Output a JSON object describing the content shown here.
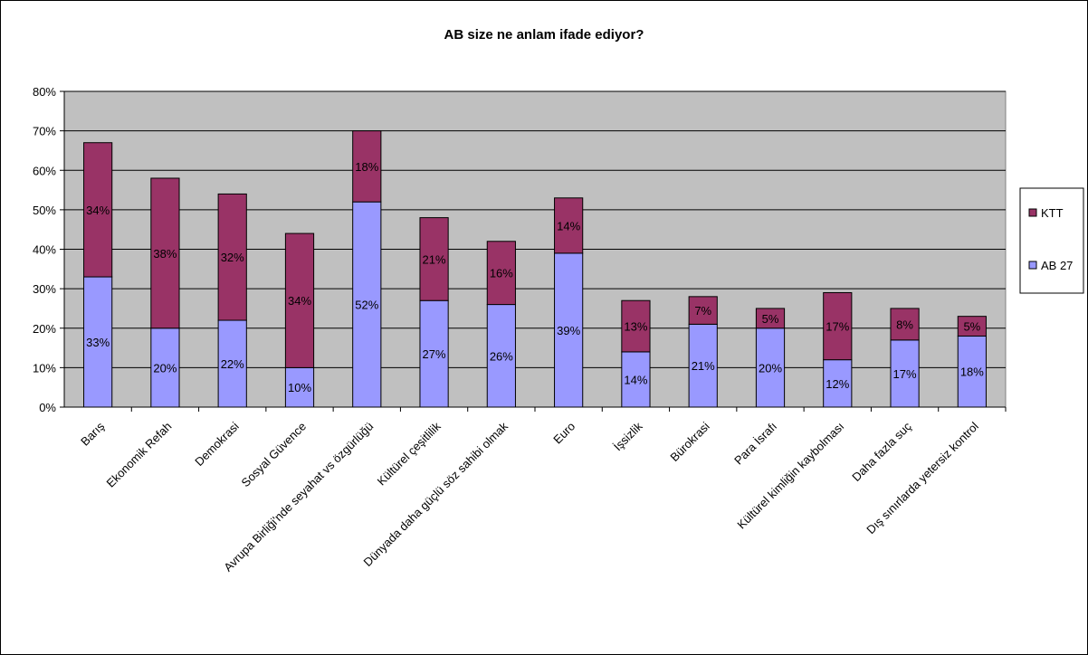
{
  "chart_data": {
    "type": "bar",
    "stacked": true,
    "title": "AB size ne anlam ifade ediyor?",
    "xlabel": "",
    "ylabel": "",
    "ylim": [
      0,
      80
    ],
    "yticks": [
      "0%",
      "10%",
      "20%",
      "30%",
      "40%",
      "50%",
      "60%",
      "70%",
      "80%"
    ],
    "grid": true,
    "legend_position": "right",
    "categories": [
      "Barış",
      "Ekonomik Refah",
      "Demokrasi",
      "Sosyal Güvence",
      "Avrupa Birliği'nde seyahat vs özgürlüğü",
      "Kültürel çeşitlilik",
      "Dünyada daha güçlü söz sahibi olmak",
      "Euro",
      "İşsizlik",
      "Bürokrasi",
      "Para İsrafı",
      "Kültürel kimliğin kaybolması",
      "Daha fazla suç",
      "Dış sınırlarda yetersiz kontrol"
    ],
    "series": [
      {
        "name": "AB 27",
        "color": "#9999ff",
        "values": [
          33,
          20,
          22,
          10,
          52,
          27,
          26,
          39,
          14,
          21,
          20,
          12,
          17,
          18
        ],
        "labels": [
          "33%",
          "20%",
          "22%",
          "10%",
          "52%",
          "27%",
          "26%",
          "39%",
          "14%",
          "21%",
          "20%",
          "12%",
          "17%",
          "18%"
        ]
      },
      {
        "name": "KTT",
        "color": "#993366",
        "values": [
          34,
          38,
          32,
          34,
          18,
          21,
          16,
          14,
          13,
          7,
          5,
          17,
          8,
          5
        ],
        "labels": [
          "34%",
          "38%",
          "32%",
          "34%",
          "18%",
          "21%",
          "16%",
          "14%",
          "13%",
          "7%",
          "5%",
          "17%",
          "8%",
          "5%"
        ]
      }
    ],
    "colors": {
      "plot_background": "#c0c0c0",
      "gridline": "#000000",
      "bar_outline": "#000000"
    }
  }
}
